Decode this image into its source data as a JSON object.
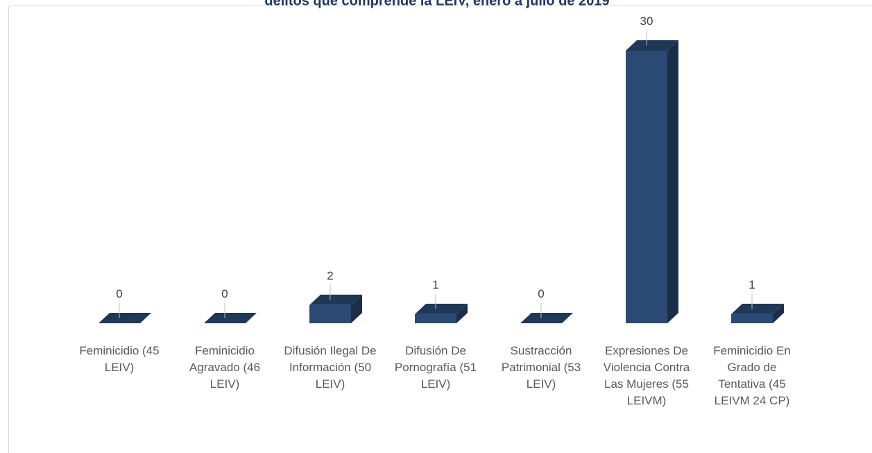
{
  "chart_data": {
    "type": "bar3d",
    "title": "delitos que comprende la LEIV, enero a julio de 2019",
    "categories": [
      "Feminicidio (45 LEIV)",
      "Feminicidio Agravado (46 LEIV)",
      "Difusión Ilegal De Información (50 LEIV)",
      "Difusión De Pornografía (51 LEIV)",
      "Sustracción Patrimonial (53 LEIV)",
      "Expresiones De Violencia Contra Las Mujeres (55 LEIVM)",
      "Feminicidio En Grado de Tentativa (45 LEIVM 24 CP)"
    ],
    "values": [
      0,
      0,
      2,
      1,
      0,
      30,
      1
    ],
    "color": "#2a4a74"
  }
}
